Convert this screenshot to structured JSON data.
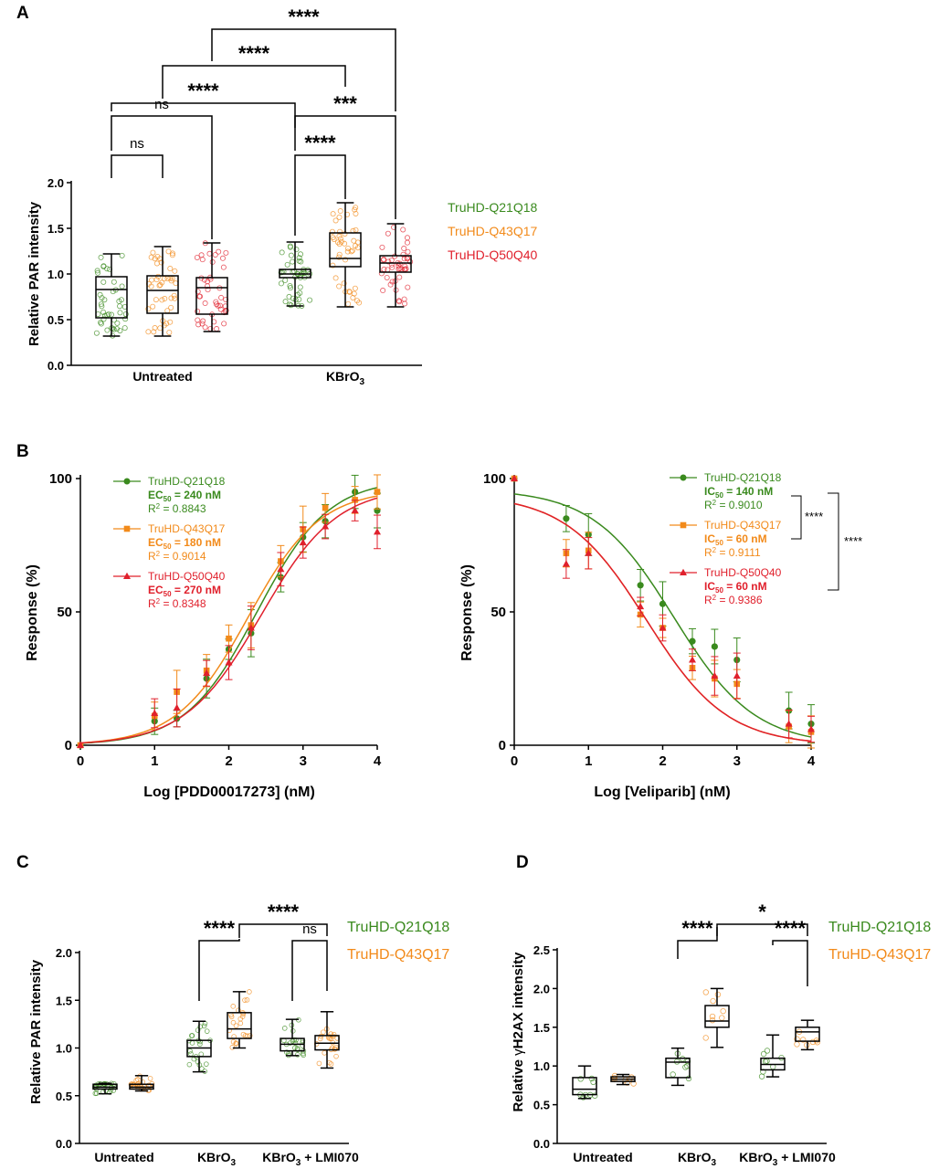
{
  "colors": {
    "green": "#3a8a1e",
    "orange": "#f28a1a",
    "red": "#e0202c",
    "black": "#000000"
  },
  "panels": {
    "a": "A",
    "b": "B",
    "c": "C",
    "d": "D"
  },
  "chart_data": [
    {
      "id": "A",
      "type": "box",
      "ylabel": "Relative PAR intensity",
      "ylim": [
        0,
        2
      ],
      "yticks": [
        "0.0",
        "0.5",
        "1.0",
        "1.5",
        "2.0"
      ],
      "groups": [
        "Untreated",
        "KBrO3"
      ],
      "group_labels": [
        {
          "text": "Untreated"
        },
        {
          "text": "KBrO",
          "sub": "3"
        }
      ],
      "legend": [
        "TruHD-Q21Q18",
        "TruHD-Q43Q17",
        "TruHD-Q50Q40"
      ],
      "boxes": [
        {
          "group": "Untreated",
          "series": "TruHD-Q21Q18",
          "min": 0.32,
          "q1": 0.52,
          "median": 0.83,
          "q3": 0.97,
          "max": 1.22
        },
        {
          "group": "Untreated",
          "series": "TruHD-Q43Q17",
          "min": 0.32,
          "q1": 0.57,
          "median": 0.82,
          "q3": 0.98,
          "max": 1.3
        },
        {
          "group": "Untreated",
          "series": "TruHD-Q50Q40",
          "min": 0.37,
          "q1": 0.56,
          "median": 0.85,
          "q3": 0.96,
          "max": 1.34
        },
        {
          "group": "KBrO3",
          "series": "TruHD-Q21Q18",
          "min": 0.65,
          "q1": 0.96,
          "median": 1.0,
          "q3": 1.05,
          "max": 1.35
        },
        {
          "group": "KBrO3",
          "series": "TruHD-Q43Q17",
          "min": 0.64,
          "q1": 1.08,
          "median": 1.17,
          "q3": 1.45,
          "max": 1.78
        },
        {
          "group": "KBrO3",
          "series": "TruHD-Q50Q40",
          "min": 0.64,
          "q1": 1.02,
          "median": 1.12,
          "q3": 1.2,
          "max": 1.55
        }
      ],
      "significance": [
        {
          "label": "ns",
          "from": 0,
          "to": 1
        },
        {
          "label": "ns",
          "from": 0,
          "to": 2
        },
        {
          "label": "****",
          "from": 3,
          "to": 4
        },
        {
          "label": "***",
          "from": 3,
          "to": 5
        },
        {
          "label": "****",
          "from": 0,
          "to": 3
        },
        {
          "label": "****",
          "from": 1,
          "to": 4
        },
        {
          "label": "****",
          "from": 2,
          "to": 5
        }
      ]
    },
    {
      "id": "B-left",
      "type": "line",
      "xlabel": "Log [PDD00017273] (nM)",
      "ylabel": "Response (%)",
      "xlim": [
        0,
        4
      ],
      "ylim": [
        0,
        100
      ],
      "xticks": [
        "0",
        "1",
        "2",
        "3",
        "4"
      ],
      "yticks": [
        "0",
        "50",
        "100"
      ],
      "series": [
        {
          "name": "TruHD-Q21Q18",
          "param": "EC",
          "value": " = 240 nM",
          "r2": " = 0.8843",
          "logec50": 2.38,
          "bottom": 0,
          "top": 100,
          "hill": 0.9,
          "points": [
            [
              0,
              0
            ],
            [
              1,
              9
            ],
            [
              1.3,
              10
            ],
            [
              1.7,
              25
            ],
            [
              2,
              36
            ],
            [
              2.3,
              42
            ],
            [
              2.7,
              63
            ],
            [
              3,
              78
            ],
            [
              3.3,
              84
            ],
            [
              3.7,
              95
            ],
            [
              4,
              88
            ]
          ]
        },
        {
          "name": "TruHD-Q43Q17",
          "param": "EC",
          "value": " = 180 nM",
          "r2": " = 0.9014",
          "logec50": 2.26,
          "bottom": 0,
          "top": 96,
          "hill": 0.9,
          "points": [
            [
              0,
              0
            ],
            [
              1,
              11
            ],
            [
              1.3,
              20
            ],
            [
              1.7,
              28
            ],
            [
              2,
              40
            ],
            [
              2.3,
              45
            ],
            [
              2.7,
              69
            ],
            [
              3,
              81
            ],
            [
              3.3,
              89
            ],
            [
              3.7,
              92
            ],
            [
              4,
              95
            ]
          ]
        },
        {
          "name": "TruHD-Q50Q40",
          "param": "EC",
          "value": " = 270 nM",
          "r2": " = 0.8348",
          "logec50": 2.43,
          "bottom": 0,
          "top": 97,
          "hill": 0.85,
          "points": [
            [
              0,
              0
            ],
            [
              1,
              12
            ],
            [
              1.3,
              14
            ],
            [
              1.7,
              27
            ],
            [
              2,
              31
            ],
            [
              2.3,
              44
            ],
            [
              2.7,
              66
            ],
            [
              3,
              76
            ],
            [
              3.3,
              82
            ],
            [
              3.7,
              88
            ],
            [
              4,
              80
            ]
          ]
        }
      ]
    },
    {
      "id": "B-right",
      "type": "line",
      "xlabel": "Log [Veliparib] (nM)",
      "ylabel": "Response (%)",
      "xlim": [
        0,
        4
      ],
      "ylim": [
        0,
        100
      ],
      "xticks": [
        "0",
        "1",
        "2",
        "3",
        "4"
      ],
      "yticks": [
        "0",
        "50",
        "100"
      ],
      "series": [
        {
          "name": "TruHD-Q21Q18",
          "param": "IC",
          "value": " = 140 nM",
          "r2": " = 0.9010",
          "logec50": 2.15,
          "bottom": 0,
          "top": 96,
          "hill": 0.8,
          "points": [
            [
              0,
              100
            ],
            [
              0.7,
              85
            ],
            [
              1,
              79
            ],
            [
              1.7,
              60
            ],
            [
              2,
              53
            ],
            [
              2.4,
              39
            ],
            [
              2.7,
              37
            ],
            [
              3,
              32
            ],
            [
              3.7,
              13
            ],
            [
              4,
              8
            ]
          ]
        },
        {
          "name": "TruHD-Q43Q17",
          "param": "IC",
          "value": " = 60 nM",
          "r2": " = 0.9111",
          "logec50": 1.78,
          "bottom": 0,
          "top": 94,
          "hill": 0.8,
          "points": [
            [
              0,
              100
            ],
            [
              0.7,
              72
            ],
            [
              1,
              73
            ],
            [
              1.7,
              49
            ],
            [
              2,
              44
            ],
            [
              2.4,
              29
            ],
            [
              2.7,
              25
            ],
            [
              3,
              23
            ],
            [
              3.7,
              7
            ],
            [
              4,
              5
            ]
          ]
        },
        {
          "name": "TruHD-Q50Q40",
          "param": "IC",
          "value": " = 60 nM",
          "r2": " = 0.9386",
          "logec50": 1.78,
          "bottom": 0,
          "top": 94,
          "hill": 0.8,
          "points": [
            [
              0,
              100
            ],
            [
              0.7,
              68
            ],
            [
              1,
              72
            ],
            [
              1.7,
              52
            ],
            [
              2,
              44
            ],
            [
              2.4,
              32
            ],
            [
              2.7,
              26
            ],
            [
              3,
              26
            ],
            [
              3.7,
              8
            ],
            [
              4,
              6
            ]
          ]
        }
      ],
      "significance": [
        "****",
        "****"
      ]
    },
    {
      "id": "C",
      "type": "box",
      "ylabel": "Relative PAR intensity",
      "ylim": [
        0,
        2
      ],
      "yticks": [
        "0.0",
        "0.5",
        "1.0",
        "1.5",
        "2.0"
      ],
      "group_labels": [
        {
          "text": "Untreated"
        },
        {
          "text": "KBrO",
          "sub": "3"
        },
        {
          "text": "KBrO",
          "sub": "3",
          "tail": " + LMI070"
        }
      ],
      "legend": [
        "TruHD-Q21Q18",
        "TruHD-Q43Q17"
      ],
      "boxes": [
        {
          "group": "Untreated",
          "series": "TruHD-Q21Q18",
          "min": 0.52,
          "q1": 0.57,
          "median": 0.59,
          "q3": 0.62,
          "max": 0.63
        },
        {
          "group": "Untreated",
          "series": "TruHD-Q43Q17",
          "min": 0.55,
          "q1": 0.57,
          "median": 0.59,
          "q3": 0.62,
          "max": 0.71
        },
        {
          "group": "KBrO3",
          "series": "TruHD-Q21Q18",
          "min": 0.75,
          "q1": 0.91,
          "median": 1.0,
          "q3": 1.08,
          "max": 1.28
        },
        {
          "group": "KBrO3",
          "series": "TruHD-Q43Q17",
          "min": 1.0,
          "q1": 1.1,
          "median": 1.2,
          "q3": 1.37,
          "max": 1.59
        },
        {
          "group": "KBrO3 + LMI070",
          "series": "TruHD-Q21Q18",
          "min": 0.92,
          "q1": 0.97,
          "median": 1.04,
          "q3": 1.1,
          "max": 1.3
        },
        {
          "group": "KBrO3 + LMI070",
          "series": "TruHD-Q43Q17",
          "min": 0.79,
          "q1": 0.98,
          "median": 1.05,
          "q3": 1.13,
          "max": 1.38
        }
      ],
      "significance": [
        {
          "label": "****",
          "from": 2,
          "to": 3
        },
        {
          "label": "ns",
          "from": 4,
          "to": 5
        },
        {
          "label": "****",
          "from": 3,
          "to": 5
        }
      ]
    },
    {
      "id": "D",
      "type": "box",
      "ylabel_pre": "Relative ",
      "ylabel_gamma": "γ",
      "ylabel_post": "H2AX intensity",
      "ylim": [
        0,
        2.5
      ],
      "yticks": [
        "0.0",
        "0.5",
        "1.0",
        "1.5",
        "2.0",
        "2.5"
      ],
      "group_labels": [
        {
          "text": "Untreated"
        },
        {
          "text": "KBrO",
          "sub": "3"
        },
        {
          "text": "KBrO",
          "sub": "3",
          "tail": " + LMI070"
        }
      ],
      "legend": [
        "TruHD-Q21Q18",
        "TruHD-Q43Q17"
      ],
      "boxes": [
        {
          "group": "Untreated",
          "series": "TruHD-Q21Q18",
          "min": 0.58,
          "q1": 0.63,
          "median": 0.7,
          "q3": 0.85,
          "max": 1.0
        },
        {
          "group": "Untreated",
          "series": "TruHD-Q43Q17",
          "min": 0.76,
          "q1": 0.8,
          "median": 0.83,
          "q3": 0.86,
          "max": 0.89
        },
        {
          "group": "KBrO3",
          "series": "TruHD-Q21Q18",
          "min": 0.75,
          "q1": 0.85,
          "median": 1.05,
          "q3": 1.1,
          "max": 1.23
        },
        {
          "group": "KBrO3",
          "series": "TruHD-Q43Q17",
          "min": 1.24,
          "q1": 1.5,
          "median": 1.58,
          "q3": 1.78,
          "max": 2.0
        },
        {
          "group": "KBrO3 + LMI070",
          "series": "TruHD-Q21Q18",
          "min": 0.86,
          "q1": 0.95,
          "median": 1.02,
          "q3": 1.1,
          "max": 1.4
        },
        {
          "group": "KBrO3 + LMI070",
          "series": "TruHD-Q43Q17",
          "min": 1.21,
          "q1": 1.32,
          "median": 1.44,
          "q3": 1.5,
          "max": 1.59
        }
      ],
      "significance": [
        {
          "label": "****",
          "from": 2,
          "to": 3
        },
        {
          "label": "****",
          "from": 4,
          "to": 5
        },
        {
          "label": "*",
          "from": 3,
          "to": 5
        }
      ]
    }
  ]
}
